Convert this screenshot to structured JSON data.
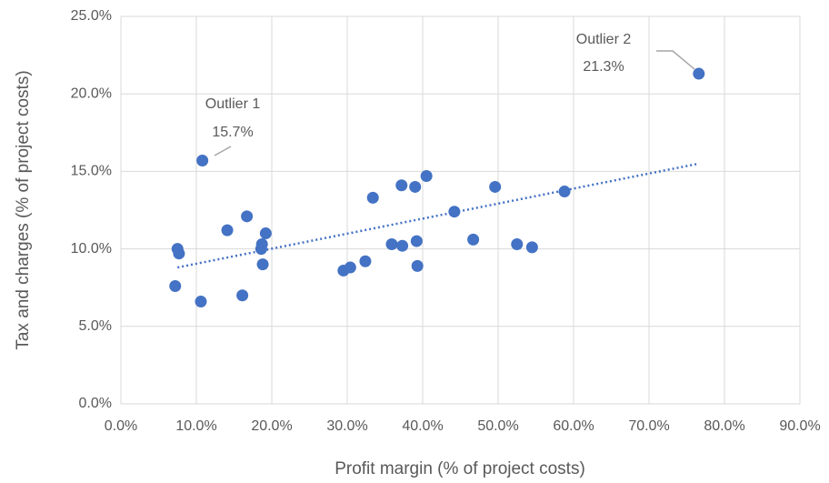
{
  "chart_data": {
    "type": "scatter",
    "x_label": "Profit margin (% of project costs)",
    "y_label": "Tax and charges (% of project costs)",
    "xlim": [
      0,
      90
    ],
    "ylim": [
      0,
      25
    ],
    "xticks": [
      {
        "value": 0,
        "label": "0.0%"
      },
      {
        "value": 10,
        "label": "10.0%"
      },
      {
        "value": 20,
        "label": "20.0%"
      },
      {
        "value": 30,
        "label": "30.0%"
      },
      {
        "value": 40,
        "label": "40.0%"
      },
      {
        "value": 50,
        "label": "50.0%"
      },
      {
        "value": 60,
        "label": "60.0%"
      },
      {
        "value": 70,
        "label": "70.0%"
      },
      {
        "value": 80,
        "label": "80.0%"
      },
      {
        "value": 90,
        "label": "90.0%"
      }
    ],
    "yticks": [
      {
        "value": 0,
        "label": "0.0%"
      },
      {
        "value": 5,
        "label": "5.0%"
      },
      {
        "value": 10,
        "label": "10.0%"
      },
      {
        "value": 15,
        "label": "15.0%"
      },
      {
        "value": 20,
        "label": "20.0%"
      },
      {
        "value": 25,
        "label": "25.0%"
      }
    ],
    "grid": true,
    "series": [
      {
        "color": "#4472c4",
        "x": [
          7.2,
          7.5,
          7.7,
          10.6,
          10.8,
          14.1,
          16.1,
          16.7,
          18.6,
          18.7,
          18.8,
          19.2,
          29.5,
          30.4,
          32.4,
          33.4,
          35.9,
          37.2,
          37.3,
          39.0,
          39.2,
          39.3,
          40.5,
          44.2,
          46.7,
          49.6,
          52.5,
          54.5,
          58.8,
          76.6
        ],
        "values": [
          7.6,
          10.0,
          9.7,
          6.6,
          15.7,
          11.2,
          7.0,
          12.1,
          10.0,
          10.3,
          9.0,
          11.0,
          8.6,
          8.8,
          9.2,
          13.3,
          10.3,
          14.1,
          10.2,
          14.0,
          10.5,
          8.9,
          14.7,
          12.4,
          10.6,
          14.0,
          10.3,
          10.1,
          13.7,
          21.3
        ]
      }
    ],
    "trendline": {
      "color": "#4472c4",
      "x": [
        7.5,
        76.6
      ],
      "y": [
        8.8,
        15.5
      ]
    },
    "annotations": [
      {
        "text": "Outlier 1",
        "value_label": "15.7%"
      },
      {
        "text": "Outlier 2",
        "value_label": "21.3%"
      }
    ]
  }
}
